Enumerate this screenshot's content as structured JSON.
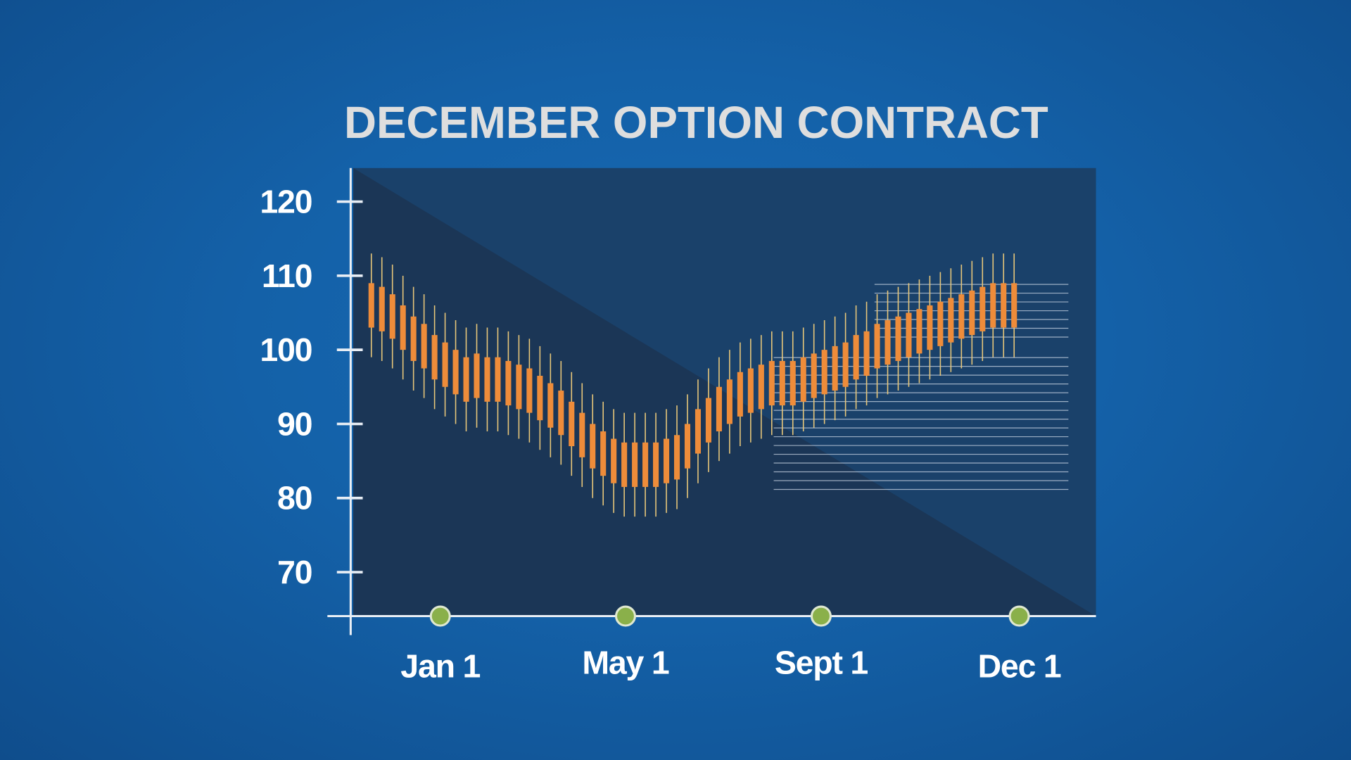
{
  "chart_data": {
    "type": "candlestick",
    "title": "DECEMBER OPTION CONTRACT",
    "xlabel": "",
    "ylabel": "",
    "ylim": [
      65,
      124
    ],
    "y_ticks": [
      "120",
      "110",
      "100",
      "90",
      "80",
      "70"
    ],
    "y_tick_values": [
      120,
      110,
      100,
      90,
      80,
      70
    ],
    "x_ticks": [
      "Jan 1",
      "May 1",
      "Sept 1",
      "Dec 1"
    ],
    "grid": true,
    "candle_mid_values": [
      106,
      105.5,
      104.5,
      103,
      101.5,
      100.5,
      99,
      98,
      97,
      96,
      96.5,
      96,
      96,
      95.5,
      95,
      94.5,
      93.5,
      92.5,
      91.5,
      90,
      88.5,
      87,
      86,
      85,
      84.5,
      84.5,
      84.5,
      84.5,
      85,
      85.5,
      87,
      89,
      90.5,
      92,
      93,
      94,
      94.5,
      95,
      95.5,
      95.5,
      95.5,
      96,
      96.5,
      97,
      97.5,
      98,
      99,
      99.5,
      100.5,
      101,
      101.5,
      102,
      102.5,
      103,
      103.5,
      104,
      104.5,
      105,
      105.5,
      106,
      106,
      106
    ],
    "candle_body_half_range": 3,
    "candle_wick_half_range": 7,
    "colors": {
      "candle": "#ee8c3a",
      "wick": "#e8c77a",
      "marker": "#8ab04a",
      "grid": "#e6e6e6"
    }
  }
}
